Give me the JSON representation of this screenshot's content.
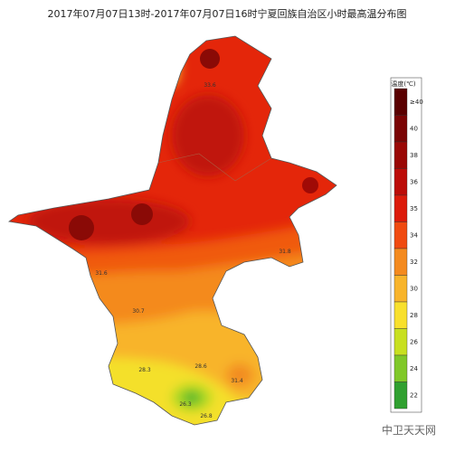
{
  "title": "2017年07月07日13时-2017年07月07日16时宁夏回族自治区小时最高温分布图",
  "legend": {
    "title": "温度(℃)",
    "labels": [
      "≥40",
      "40",
      "38",
      "36",
      "35",
      "34",
      "32",
      "30",
      "28",
      "26",
      "24",
      "22"
    ]
  },
  "stations": [
    "33.6",
    "31.8",
    "31.6",
    "30.7",
    "28.3",
    "28.6",
    "31.4",
    "26.3",
    "26.8"
  ],
  "watermark": "中卫天天网"
}
